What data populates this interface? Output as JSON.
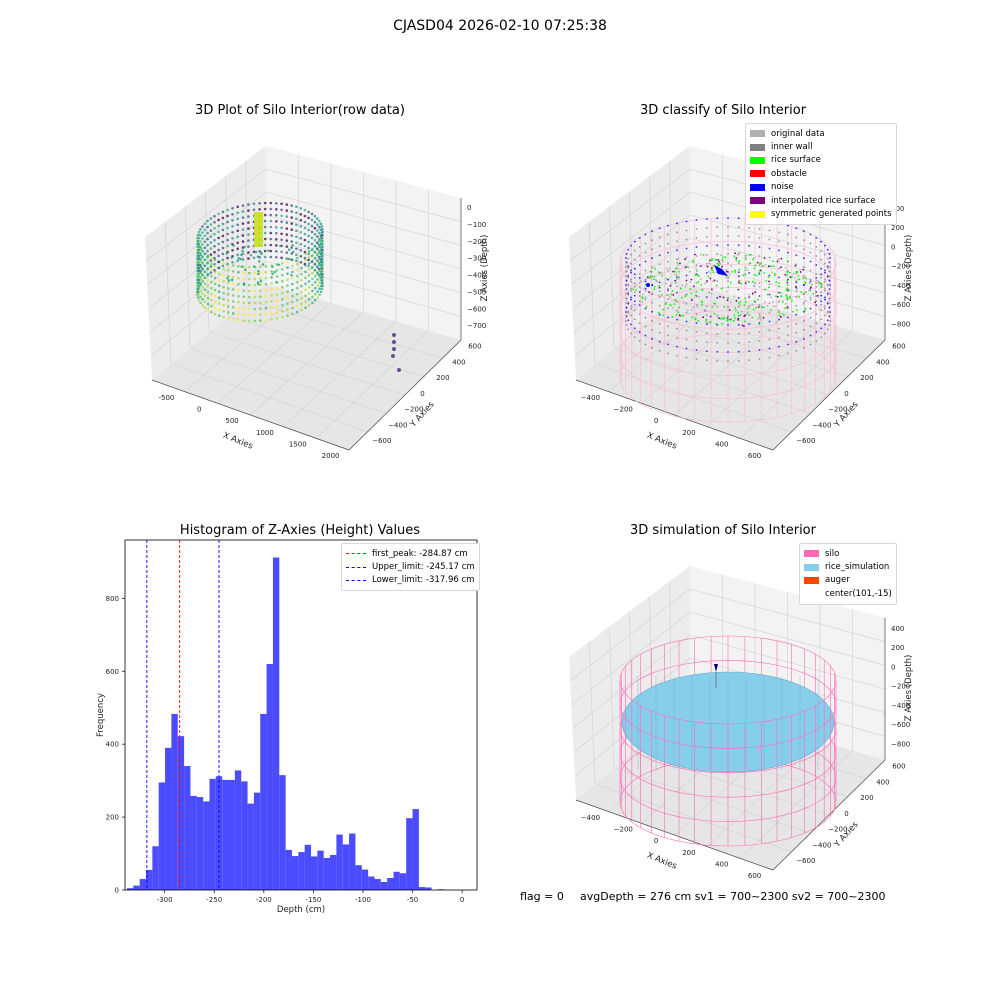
{
  "suptitle": "CJASD04 2026-02-10 07:25:38",
  "panels": {
    "raw": {
      "title": "3D Plot of Silo Interior(row data)",
      "xlabel": "X Axies",
      "ylabel": "Y Axies",
      "zlabel": "Z Axies (Depth)",
      "xticks": [
        "-500",
        "0",
        "500",
        "1000",
        "1500",
        "2000"
      ],
      "yticks": [
        "600",
        "400",
        "200",
        "0",
        "−200",
        "−400",
        "−600"
      ],
      "zticks": [
        "0",
        "−100",
        "−200",
        "−300",
        "−400",
        "−500",
        "−600",
        "−700"
      ]
    },
    "classify": {
      "title": "3D classify of Silo Interior",
      "xlabel": "X Axies",
      "ylabel": "Y Axies",
      "zlabel": "Z Axies (Depth)",
      "xticks": [
        "−400",
        "−200",
        "0",
        "200",
        "400",
        "600"
      ],
      "yticks": [
        "600",
        "400",
        "200",
        "0",
        "−200",
        "−400",
        "−600"
      ],
      "zticks": [
        "400",
        "200",
        "0",
        "−200",
        "−400",
        "−600",
        "−800"
      ],
      "legend": [
        {
          "label": "original data",
          "color": "#b0b0b0"
        },
        {
          "label": "inner wall",
          "color": "#808080"
        },
        {
          "label": "rice surface",
          "color": "#00ff00"
        },
        {
          "label": "obstacle",
          "color": "#ff0000"
        },
        {
          "label": "noise",
          "color": "#0000ff"
        },
        {
          "label": "interpolated rice surface",
          "color": "#800080"
        },
        {
          "label": "symmetric generated points",
          "color": "#ffff00"
        }
      ]
    },
    "histogram": {
      "title": "Histogram of Z-Axies (Height) Values",
      "xlabel": "Depth (cm)",
      "ylabel": "Frequency",
      "legend": [
        {
          "label": "first_peak: -284.87 cm",
          "color": "#ff0000"
        },
        {
          "label": "Upper_limit: -245.17 cm",
          "color": "#0000ff"
        },
        {
          "label": "Lower_limit: -317.96 cm",
          "color": "#0000ff"
        }
      ]
    },
    "simulation": {
      "title": "3D simulation of Silo Interior",
      "xlabel": "X Axies",
      "ylabel": "Y Axies",
      "zlabel": "Z Axies (Depth)",
      "xticks": [
        "−400",
        "−200",
        "0",
        "200",
        "400",
        "600"
      ],
      "yticks": [
        "600",
        "400",
        "200",
        "0",
        "−200",
        "−400",
        "−600"
      ],
      "zticks": [
        "400",
        "200",
        "0",
        "−200",
        "−400",
        "−600",
        "−800"
      ],
      "legend": [
        {
          "label": "silo",
          "color": "#ff69b4"
        },
        {
          "label": "rice_simulation",
          "color": "#87ceeb"
        },
        {
          "label": "auger",
          "color": "#ff4500"
        },
        {
          "label": "center(101,-15)",
          "color": ""
        }
      ]
    }
  },
  "footer": {
    "flag": "flag = 0",
    "status": "avgDepth = 276 cm  sv1 = 700~2300  sv2 = 700~2300"
  },
  "chart_data": {
    "type": "bar",
    "title": "Histogram of Z-Axies (Height) Values",
    "xlabel": "Depth (cm)",
    "ylabel": "Frequency",
    "xlim": [
      -340,
      15
    ],
    "ylim": [
      0,
      960
    ],
    "xticks": [
      -300,
      -250,
      -200,
      -150,
      -100,
      -50,
      0
    ],
    "yticks": [
      0,
      200,
      400,
      600,
      800
    ],
    "bin_width": 6.4,
    "bins": [
      {
        "x0": -338.0,
        "v": 5
      },
      {
        "x0": -331.6,
        "v": 12
      },
      {
        "x0": -325.2,
        "v": 30
      },
      {
        "x0": -318.8,
        "v": 55
      },
      {
        "x0": -312.4,
        "v": 120
      },
      {
        "x0": -306.0,
        "v": 295
      },
      {
        "x0": -299.6,
        "v": 390
      },
      {
        "x0": -293.2,
        "v": 483
      },
      {
        "x0": -286.8,
        "v": 422
      },
      {
        "x0": -280.4,
        "v": 340
      },
      {
        "x0": -274.0,
        "v": 258
      },
      {
        "x0": -267.6,
        "v": 255
      },
      {
        "x0": -261.2,
        "v": 243
      },
      {
        "x0": -254.8,
        "v": 305
      },
      {
        "x0": -248.4,
        "v": 312
      },
      {
        "x0": -242.0,
        "v": 302
      },
      {
        "x0": -235.6,
        "v": 302
      },
      {
        "x0": -229.2,
        "v": 328
      },
      {
        "x0": -222.8,
        "v": 298
      },
      {
        "x0": -216.4,
        "v": 237
      },
      {
        "x0": -210.0,
        "v": 267
      },
      {
        "x0": -203.6,
        "v": 483
      },
      {
        "x0": -197.2,
        "v": 620
      },
      {
        "x0": -190.8,
        "v": 912
      },
      {
        "x0": -184.4,
        "v": 315
      },
      {
        "x0": -178.0,
        "v": 110
      },
      {
        "x0": -171.6,
        "v": 93
      },
      {
        "x0": -165.2,
        "v": 104
      },
      {
        "x0": -158.8,
        "v": 124
      },
      {
        "x0": -152.4,
        "v": 92
      },
      {
        "x0": -146.0,
        "v": 108
      },
      {
        "x0": -139.6,
        "v": 88
      },
      {
        "x0": -133.2,
        "v": 96
      },
      {
        "x0": -126.8,
        "v": 152
      },
      {
        "x0": -120.4,
        "v": 125
      },
      {
        "x0": -114.0,
        "v": 155
      },
      {
        "x0": -107.6,
        "v": 68
      },
      {
        "x0": -101.2,
        "v": 56
      },
      {
        "x0": -94.8,
        "v": 37
      },
      {
        "x0": -88.4,
        "v": 30
      },
      {
        "x0": -82.0,
        "v": 22
      },
      {
        "x0": -75.6,
        "v": 33
      },
      {
        "x0": -69.2,
        "v": 50
      },
      {
        "x0": -62.8,
        "v": 46
      },
      {
        "x0": -56.4,
        "v": 197
      },
      {
        "x0": -50.0,
        "v": 222
      },
      {
        "x0": -43.6,
        "v": 8
      },
      {
        "x0": -37.2,
        "v": 7
      },
      {
        "x0": -30.8,
        "v": 0
      },
      {
        "x0": -24.4,
        "v": 2
      }
    ],
    "vlines": [
      {
        "name": "first_peak",
        "x": -284.87,
        "color": "#ff0000"
      },
      {
        "name": "Upper_limit",
        "x": -245.17,
        "color": "#0000ff"
      },
      {
        "name": "Lower_limit",
        "x": -317.96,
        "color": "#0000ff"
      }
    ],
    "bar_color": "#4b4bff",
    "legend_position": "upper right"
  }
}
